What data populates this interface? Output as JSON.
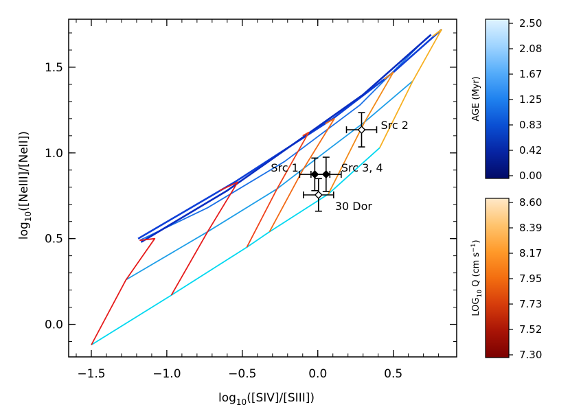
{
  "chart_data": {
    "type": "line",
    "xlabel_main": "log",
    "xlabel_sub": "10",
    "xlabel_rest": "([SIV]/[SIII])",
    "ylabel_main": "log",
    "ylabel_sub": "10",
    "ylabel_rest": "([NeIII]/[NeII])",
    "xlim": [
      -1.65,
      0.92
    ],
    "ylim": [
      -0.19,
      1.78
    ],
    "xticks": [
      -1.5,
      -1.0,
      -0.5,
      0.0,
      0.5
    ],
    "xtick_labels": [
      "−1.5",
      "−1.0",
      "−0.5",
      "0.0",
      "0.5"
    ],
    "yticks": [
      0.0,
      0.5,
      1.0,
      1.5
    ],
    "ytick_labels": [
      "0.0",
      "0.5",
      "1.0",
      "1.5"
    ],
    "age_colorbar": {
      "title": "AGE (Myr)",
      "labels": [
        "2.50",
        "2.08",
        "1.67",
        "1.25",
        "0.83",
        "0.42",
        "0.00"
      ],
      "colors": [
        "#dff3ff",
        "#9fd4ff",
        "#56adfa",
        "#1f82ef",
        "#0a4fd3",
        "#0624a3",
        "#020a66"
      ]
    },
    "q_colorbar": {
      "title_main": "LOG",
      "title_sub": "10",
      "title_rest": " Q (cm s",
      "title_sup": "−1",
      "title_end": ")",
      "labels": [
        "8.60",
        "8.39",
        "8.17",
        "7.95",
        "7.73",
        "7.52",
        "7.30"
      ],
      "colors": [
        "#ffe8c8",
        "#ffc46e",
        "#ff9a2a",
        "#f36e10",
        "#d63c0b",
        "#a81406",
        "#7a0000"
      ]
    },
    "age_lines": [
      {
        "color": "#00d8f0",
        "points": [
          [
            -1.5,
            -0.12
          ],
          [
            -0.97,
            0.17
          ],
          [
            -0.47,
            0.45
          ],
          [
            -0.32,
            0.54
          ],
          [
            0.07,
            0.76
          ],
          [
            0.41,
            1.03
          ]
        ]
      },
      {
        "color": "#1e9ee8",
        "points": [
          [
            -1.27,
            0.26
          ],
          [
            -0.73,
            0.54
          ],
          [
            -0.27,
            0.79
          ],
          [
            0.07,
            1.02
          ],
          [
            0.31,
            1.18
          ],
          [
            0.63,
            1.42
          ]
        ]
      },
      {
        "color": "#1b71e6",
        "points": [
          [
            -1.18,
            0.49
          ],
          [
            -0.73,
            0.68
          ],
          [
            -0.22,
            0.95
          ],
          [
            0.28,
            1.28
          ],
          [
            0.72,
            1.67
          ]
        ]
      },
      {
        "color": "#0f40d8",
        "points": [
          [
            -1.19,
            0.5
          ],
          [
            -0.55,
            0.83
          ],
          [
            0.1,
            1.2
          ],
          [
            0.5,
            1.47
          ],
          [
            0.82,
            1.72
          ]
        ]
      },
      {
        "color": "#0a2ec2",
        "points": [
          [
            -1.17,
            0.48
          ],
          [
            -0.6,
            0.78
          ],
          [
            -0.1,
            1.09
          ],
          [
            0.3,
            1.34
          ],
          [
            0.75,
            1.69
          ]
        ]
      }
    ],
    "q_lines": [
      {
        "color": "#e61c1c",
        "points": [
          [
            -1.5,
            -0.12
          ],
          [
            -1.27,
            0.26
          ],
          [
            -1.08,
            0.5
          ],
          [
            -1.18,
            0.49
          ]
        ]
      },
      {
        "color": "#e61c1c",
        "points": [
          [
            -0.97,
            0.17
          ],
          [
            -0.73,
            0.54
          ],
          [
            -0.53,
            0.83
          ],
          [
            -0.65,
            0.78
          ]
        ]
      },
      {
        "color": "#f0421a",
        "points": [
          [
            -0.47,
            0.45
          ],
          [
            -0.27,
            0.79
          ],
          [
            -0.06,
            1.12
          ],
          [
            -0.1,
            1.1
          ]
        ]
      },
      {
        "color": "#f26b16",
        "points": [
          [
            -0.32,
            0.54
          ],
          [
            -0.1,
            0.9
          ],
          [
            0.11,
            1.2
          ],
          [
            0.05,
            1.17
          ]
        ]
      },
      {
        "color": "#f28a18",
        "points": [
          [
            0.07,
            0.76
          ],
          [
            0.31,
            1.18
          ],
          [
            0.5,
            1.47
          ],
          [
            0.44,
            1.43
          ]
        ]
      },
      {
        "color": "#f7b022",
        "points": [
          [
            0.41,
            1.03
          ],
          [
            0.63,
            1.42
          ],
          [
            0.82,
            1.72
          ],
          [
            0.76,
            1.68
          ]
        ]
      }
    ],
    "points": [
      {
        "label": "Src 1",
        "x": -0.02,
        "y": 0.875,
        "xerr": 0.1,
        "yerr": 0.095,
        "filled": true
      },
      {
        "label": "Src 2",
        "x": 0.29,
        "y": 1.135,
        "xerr": 0.1,
        "yerr": 0.1,
        "filled": false
      },
      {
        "label": "Src 3, 4",
        "x": 0.055,
        "y": 0.875,
        "xerr": 0.1,
        "yerr": 0.1,
        "filled": true
      },
      {
        "label": "30 Dor",
        "x": 0.005,
        "y": 0.755,
        "xerr": 0.1,
        "yerr": 0.095,
        "filled": false
      }
    ]
  }
}
